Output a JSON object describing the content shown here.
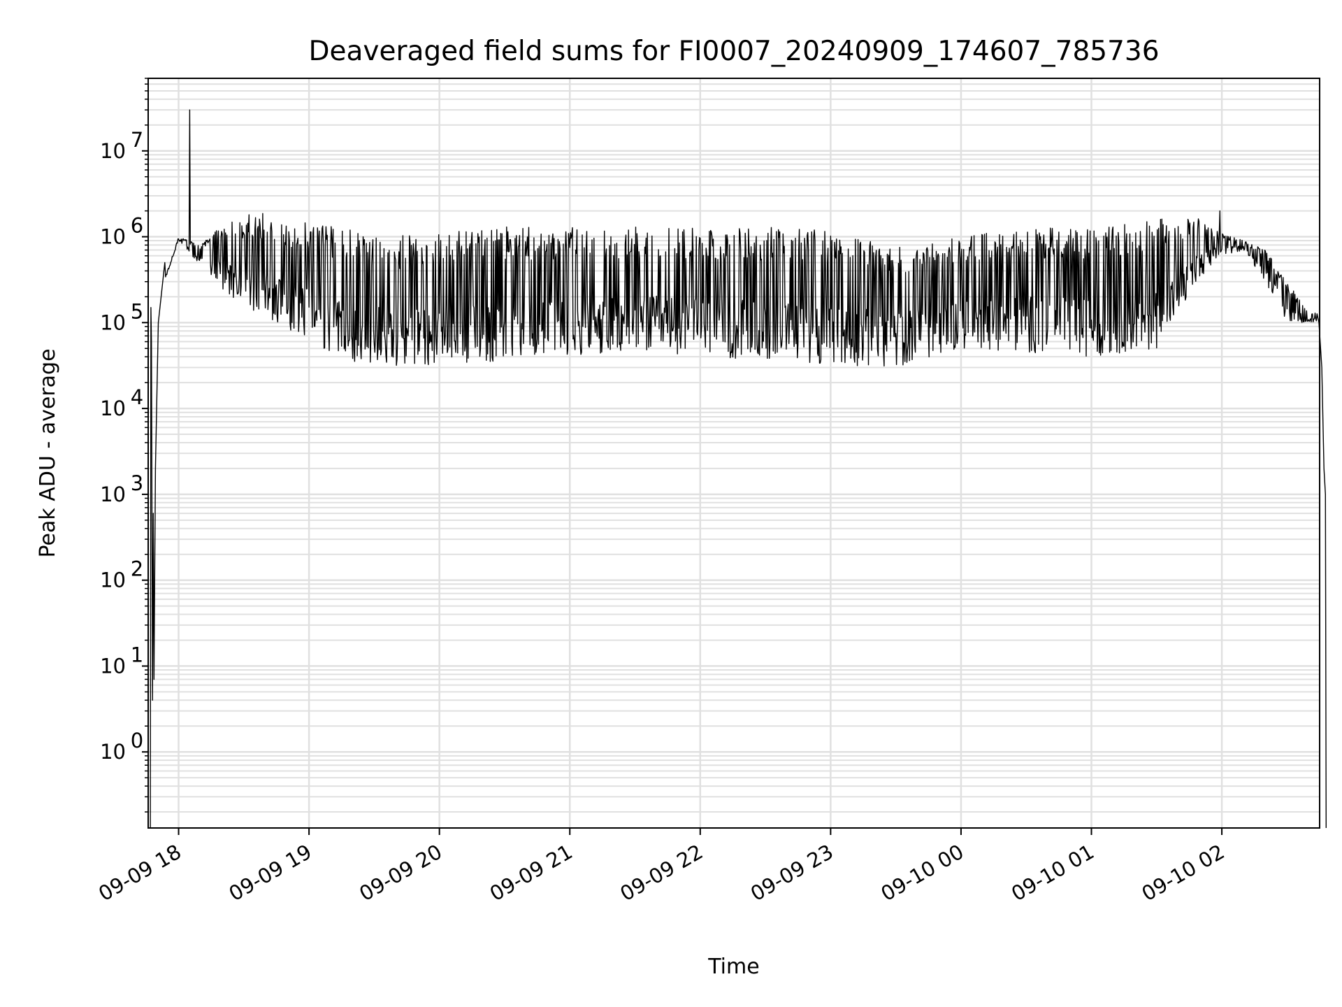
{
  "chart_data": {
    "type": "line",
    "title": "Deaveraged field sums for FI0007_20240909_174607_785736",
    "xlabel": "Time",
    "ylabel": "Peak ADU - average",
    "yscale": "log",
    "grid": true,
    "x_tick_labels": [
      "09-09 18",
      "09-09 19",
      "09-09 20",
      "09-09 21",
      "09-09 22",
      "09-09 23",
      "09-10 00",
      "09-10 01",
      "09-10 02"
    ],
    "x_ticks": [
      "2024-09-09 18:00",
      "2024-09-09 19:00",
      "2024-09-09 20:00",
      "2024-09-09 21:00",
      "2024-09-09 22:00",
      "2024-09-09 23:00",
      "2024-09-10 00:00",
      "2024-09-10 01:00",
      "2024-09-10 02:00"
    ],
    "xlim": [
      "2024-09-09 17:46",
      "2024-09-10 02:45"
    ],
    "y_ticks": [
      1,
      10,
      100,
      1000,
      10000,
      100000,
      1000000,
      10000000
    ],
    "ylim": [
      0.13,
      70000000
    ],
    "line_color": "#000000",
    "grid_color": "#e0e0e0",
    "envelope": {
      "x": [
        "2024-09-09 17:47",
        "2024-09-09 18:00",
        "2024-09-09 18:10",
        "2024-09-09 18:20",
        "2024-09-09 18:30",
        "2024-09-09 18:40",
        "2024-09-09 18:50",
        "2024-09-09 19:00",
        "2024-09-09 19:20",
        "2024-09-09 19:40",
        "2024-09-09 20:00",
        "2024-09-09 20:30",
        "2024-09-09 21:00",
        "2024-09-09 21:20",
        "2024-09-09 21:40",
        "2024-09-09 22:00",
        "2024-09-09 22:30",
        "2024-09-09 23:00",
        "2024-09-09 23:30",
        "2024-09-10 00:00",
        "2024-09-10 00:30",
        "2024-09-10 01:00",
        "2024-09-10 01:30",
        "2024-09-10 01:50",
        "2024-09-10 02:00",
        "2024-09-10 02:10",
        "2024-09-10 02:20",
        "2024-09-10 02:30",
        "2024-09-10 02:40"
      ],
      "upper": [
        100000,
        1000000,
        800000,
        1500000,
        1800000,
        1900000,
        1600000,
        1500000,
        1200000,
        1000000,
        1200000,
        1300000,
        1300000,
        1300000,
        1300000,
        1300000,
        1300000,
        1200000,
        800000,
        1000000,
        1300000,
        1300000,
        1600000,
        1700000,
        1100000,
        900000,
        700000,
        300000,
        130000
      ],
      "lower": [
        100000,
        900000,
        450000,
        250000,
        150000,
        100000,
        80000,
        60000,
        35000,
        30000,
        32000,
        35000,
        40000,
        40000,
        45000,
        40000,
        35000,
        32000,
        30000,
        50000,
        45000,
        40000,
        50000,
        300000,
        600000,
        700000,
        300000,
        100000,
        100000
      ]
    },
    "features": {
      "early_spike_peak": 30000000,
      "early_spike_time": "2024-09-09 18:05",
      "late_spike_peak": 2000000,
      "late_spike_time": "2024-09-10 01:59",
      "initial_dip_min": 4,
      "end_drop_time": "2024-09-10 02:48"
    }
  }
}
